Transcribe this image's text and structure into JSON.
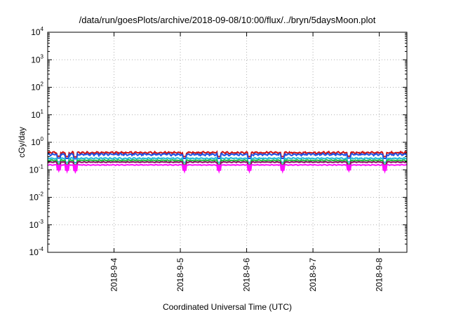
{
  "chart_data": {
    "type": "line",
    "title": "/data/run/goesPlots/archive/2018-09-08/10:00/flux/../bryn/5daysMoon.plot",
    "xlabel": "Coordinated Universal Time (UTC)",
    "ylabel": "cGy/day",
    "yscale": "log",
    "ylim": [
      0.0001,
      10000
    ],
    "xlim": [
      "2018-09-03 00:00",
      "2018-09-08 10:00"
    ],
    "grid": true,
    "x_ticks": [
      "2018-9-4",
      "2018-9-5",
      "2018-9-6",
      "2018-9-7",
      "2018-9-8"
    ],
    "y_ticks": [
      {
        "base": "10",
        "exp": "-4"
      },
      {
        "base": "10",
        "exp": "-3"
      },
      {
        "base": "10",
        "exp": "-2"
      },
      {
        "base": "10",
        "exp": "-1"
      },
      {
        "base": "10",
        "exp": "0"
      },
      {
        "base": "10",
        "exp": "1"
      },
      {
        "base": "10",
        "exp": "2"
      },
      {
        "base": "10",
        "exp": "3"
      },
      {
        "base": "10",
        "exp": "4"
      }
    ],
    "series": [
      {
        "color": "#d01010",
        "level": 0.42,
        "noise": 0.1
      },
      {
        "color": "#2050e0",
        "level": 0.36,
        "noise": 0.1
      },
      {
        "color": "#20b8d8",
        "level": 0.26,
        "noise": 0.06
      },
      {
        "color": "#20c040",
        "level": 0.22,
        "noise": 0.05
      },
      {
        "color": "#8a1060",
        "level": 0.19,
        "noise": 0.04
      },
      {
        "color": "#ff10ff",
        "level": 0.15,
        "noise": 0.04
      }
    ],
    "dips": [
      {
        "x": "2018-09-03 04:00",
        "value": 0.085
      },
      {
        "x": "2018-09-03 07:00",
        "value": 0.08
      },
      {
        "x": "2018-09-03 10:00",
        "value": 0.075
      },
      {
        "x": "2018-09-05 01:30",
        "value": 0.08
      },
      {
        "x": "2018-09-05 14:00",
        "value": 0.08
      },
      {
        "x": "2018-09-06 01:00",
        "value": 0.08
      },
      {
        "x": "2018-09-06 13:00",
        "value": 0.08
      },
      {
        "x": "2018-09-07 13:00",
        "value": 0.085
      },
      {
        "x": "2018-09-08 02:00",
        "value": 0.08
      }
    ]
  }
}
